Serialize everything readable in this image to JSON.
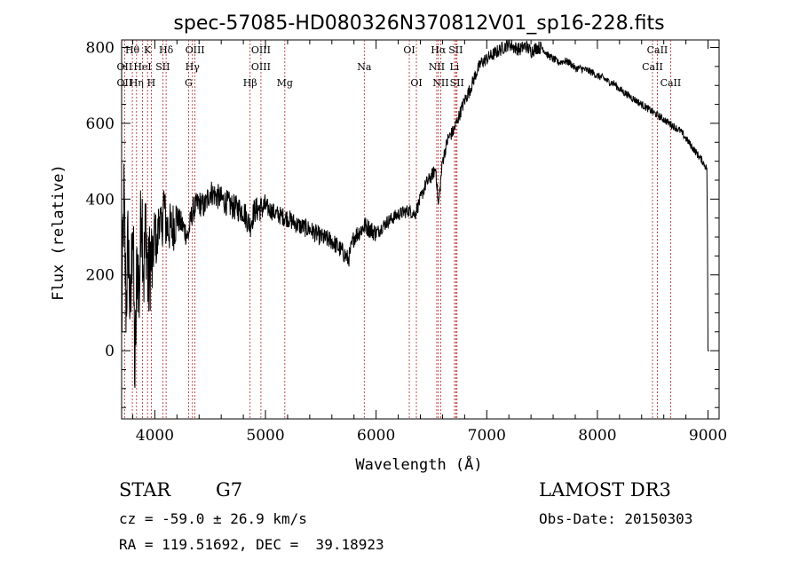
{
  "chart_data": {
    "type": "line",
    "title": "spec-57085-HD080326N370812V01_sp16-228.fits",
    "xlabel": "Wavelength (Å)",
    "ylabel": "Flux (relative)",
    "xlim": [
      3700,
      9100
    ],
    "ylim": [
      -180,
      820
    ],
    "xticks": [
      4000,
      5000,
      6000,
      7000,
      8000,
      9000
    ],
    "xtick_labels": [
      "4000",
      "5000",
      "6000",
      "7000",
      "8000",
      "9000"
    ],
    "yticks": [
      0,
      200,
      400,
      600,
      800
    ],
    "ytick_labels": [
      "0",
      "200",
      "400",
      "600",
      "800"
    ],
    "series": [
      {
        "name": "flux",
        "x": [
          3700,
          3720,
          3740,
          3760,
          3780,
          3800,
          3820,
          3840,
          3860,
          3880,
          3900,
          3920,
          3940,
          3960,
          3980,
          4000,
          4020,
          4040,
          4060,
          4080,
          4100,
          4150,
          4200,
          4250,
          4300,
          4340,
          4400,
          4450,
          4500,
          4600,
          4700,
          4800,
          4860,
          4900,
          5000,
          5100,
          5200,
          5300,
          5400,
          5500,
          5600,
          5700,
          5750,
          5800,
          5900,
          6000,
          6100,
          6200,
          6300,
          6350,
          6400,
          6450,
          6500,
          6540,
          6563,
          6600,
          6650,
          6700,
          6750,
          6800,
          6850,
          6900,
          6950,
          7000,
          7050,
          7100,
          7150,
          7200,
          7250,
          7300,
          7350,
          7400,
          7450,
          7500,
          7550,
          7600,
          7650,
          7700,
          7750,
          7800,
          7850,
          7900,
          7950,
          8000,
          8050,
          8100,
          8150,
          8200,
          8250,
          8300,
          8350,
          8400,
          8450,
          8500,
          8550,
          8600,
          8650,
          8700,
          8750,
          8800,
          8850,
          8900,
          8950,
          8990,
          9000,
          9010
        ],
        "y": [
          50,
          400,
          120,
          300,
          60,
          380,
          -80,
          250,
          150,
          420,
          200,
          340,
          160,
          250,
          220,
          330,
          260,
          370,
          300,
          400,
          330,
          320,
          350,
          330,
          300,
          370,
          390,
          380,
          420,
          400,
          380,
          370,
          330,
          370,
          380,
          360,
          350,
          330,
          320,
          300,
          290,
          260,
          240,
          300,
          330,
          310,
          340,
          360,
          370,
          360,
          400,
          440,
          460,
          480,
          380,
          500,
          560,
          580,
          620,
          660,
          690,
          730,
          760,
          770,
          780,
          790,
          800,
          810,
          800,
          795,
          805,
          790,
          800,
          800,
          780,
          770,
          760,
          765,
          760,
          745,
          745,
          740,
          735,
          725,
          720,
          710,
          705,
          690,
          680,
          670,
          660,
          650,
          640,
          630,
          620,
          610,
          600,
          590,
          580,
          560,
          540,
          520,
          500,
          480,
          300,
          0
        ]
      }
    ],
    "line_markers": [
      {
        "label": "Hθ",
        "x": 3797,
        "row": 0
      },
      {
        "label": "OII",
        "x": 3727,
        "row": 1
      },
      {
        "label": "OII",
        "x": 3727,
        "row": 2
      },
      {
        "label": "Hη",
        "x": 3835,
        "row": 2
      },
      {
        "label": "K",
        "x": 3934,
        "row": 0
      },
      {
        "label": "HeI",
        "x": 3889,
        "row": 1
      },
      {
        "label": "H",
        "x": 3968,
        "row": 2
      },
      {
        "label": "Hδ",
        "x": 4102,
        "row": 0
      },
      {
        "label": "SII",
        "x": 4072,
        "row": 1
      },
      {
        "label": "OIII",
        "x": 4363,
        "row": 0
      },
      {
        "label": "Hγ",
        "x": 4340,
        "row": 1
      },
      {
        "label": "G",
        "x": 4305,
        "row": 2
      },
      {
        "label": "OIII",
        "x": 4959,
        "row": 0
      },
      {
        "label": "OIII",
        "x": 4959,
        "row": 1
      },
      {
        "label": "Hβ",
        "x": 4861,
        "row": 2
      },
      {
        "label": "Mg",
        "x": 5175,
        "row": 2
      },
      {
        "label": "Na",
        "x": 5893,
        "row": 1
      },
      {
        "label": "OI",
        "x": 6300,
        "row": 0
      },
      {
        "label": "OI",
        "x": 6364,
        "row": 2
      },
      {
        "label": "Hα",
        "x": 6563,
        "row": 0
      },
      {
        "label": "SII",
        "x": 6720,
        "row": 0
      },
      {
        "label": "NII",
        "x": 6548,
        "row": 1
      },
      {
        "label": "Li",
        "x": 6708,
        "row": 1
      },
      {
        "label": "NII",
        "x": 6584,
        "row": 2
      },
      {
        "label": "SII",
        "x": 6731,
        "row": 2
      },
      {
        "label": "CaII",
        "x": 8542,
        "row": 0
      },
      {
        "label": "CaII",
        "x": 8498,
        "row": 1
      },
      {
        "label": "CaII",
        "x": 8662,
        "row": 2
      }
    ],
    "marker_color": "#b22222",
    "line_color": "#000000"
  },
  "info": {
    "object_class": "STAR",
    "subclass": "G7",
    "survey": "LAMOST DR3",
    "cz": "cz = -59.0 ± 26.9 km/s",
    "obs_date": "Obs-Date: 20150303",
    "coords": "RA = 119.51692, DEC =  39.18923"
  }
}
